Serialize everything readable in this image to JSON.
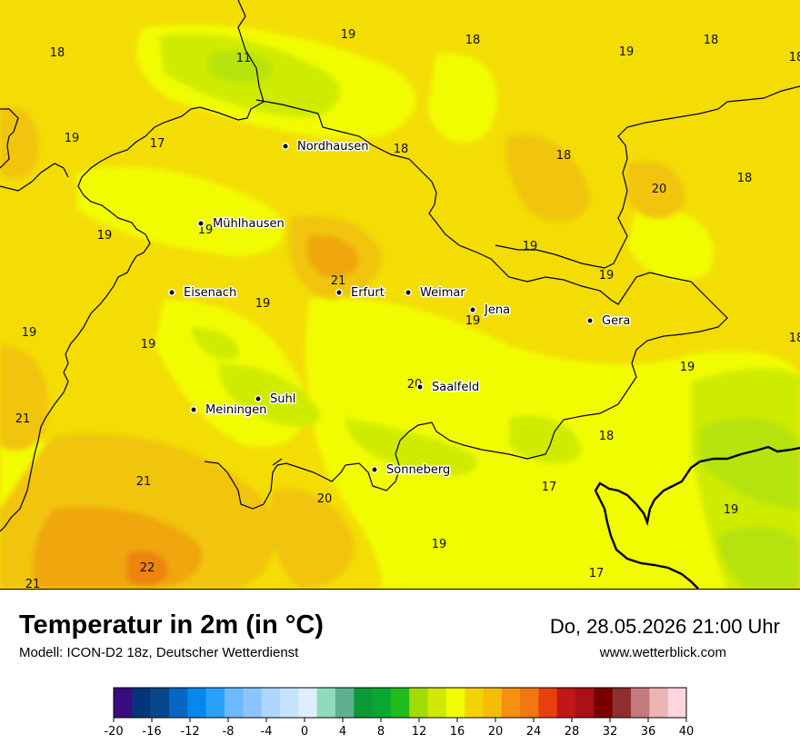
{
  "map": {
    "cities": [
      {
        "name": "Nordhausen"
      },
      {
        "name": "Mühlhausen"
      },
      {
        "name": "Eisenach"
      },
      {
        "name": "Erfurt"
      },
      {
        "name": "Weimar"
      },
      {
        "name": "Jena"
      },
      {
        "name": "Gera"
      },
      {
        "name": "Saalfeld"
      },
      {
        "name": "Suhl"
      },
      {
        "name": "Meiningen"
      },
      {
        "name": "Sonneberg"
      }
    ],
    "temperature_labels": [
      "19",
      "18",
      "19",
      "18",
      "18",
      "11",
      "19",
      "17",
      "18",
      "20",
      "20",
      "18",
      "19",
      "19",
      "21",
      "19",
      "19",
      "19",
      "19",
      "18",
      "21",
      "20",
      "18",
      "19",
      "21",
      "20",
      "17",
      "19",
      "19",
      "22",
      "17",
      "21"
    ]
  },
  "header": {
    "title": "Temperatur in 2m (in °C)",
    "model": "Modell: ICON-D2 18z, Deutscher Wetterdienst",
    "datetime": "Do, 28.05.2026 21:00 Uhr",
    "website": "www.wetterblick.com"
  },
  "legend": {
    "ticks": [
      "-20",
      "-16",
      "-12",
      "-8",
      "-4",
      "0",
      "4",
      "8",
      "12",
      "16",
      "20",
      "24",
      "28",
      "32",
      "36",
      "40"
    ],
    "colors": [
      "#3a0a80",
      "#04357a",
      "#06478e",
      "#0566c6",
      "#0488ee",
      "#2aa2fd",
      "#6cb9fd",
      "#8ac6fd",
      "#aed6fe",
      "#c6e3fe",
      "#dfeeff",
      "#8fdcbc",
      "#5fb08f",
      "#0c9a37",
      "#06a830",
      "#1ebd1b",
      "#a1dc06",
      "#cfe804",
      "#f1fd00",
      "#f3d402",
      "#f4bc04",
      "#f59010",
      "#f27612",
      "#e6400b",
      "#c11716",
      "#ab1016",
      "#7a0000",
      "#8f2e31",
      "#c4797d",
      "#eab3b4",
      "#ffd6dd"
    ]
  },
  "colors": {
    "base": "#f3dd05",
    "bright": "#f2fc02",
    "cool": "#cfec05",
    "greener": "#b6e308",
    "warm": "#f1c40a",
    "hot": "#f0a60d",
    "hottest": "#ec8410"
  }
}
